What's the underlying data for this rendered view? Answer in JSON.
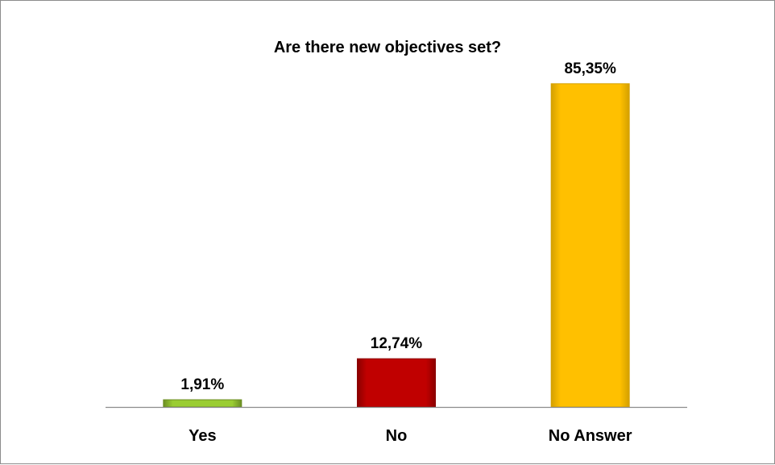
{
  "chart_data": {
    "type": "bar",
    "title": "Are there new objectives set?",
    "categories": [
      "Yes",
      "No",
      "No Answer"
    ],
    "values": [
      1.91,
      12.74,
      85.35
    ],
    "value_labels": [
      "1,91%",
      "12,74%",
      "85,35%"
    ],
    "unit": "%",
    "ylim": [
      0,
      100
    ],
    "grid": false,
    "legend": "none",
    "colors": [
      "#9ACD32",
      "#C00000",
      "#FFC000"
    ],
    "edge_colors": [
      "#6B8E23",
      "#8B0000",
      "#D4A000"
    ]
  }
}
